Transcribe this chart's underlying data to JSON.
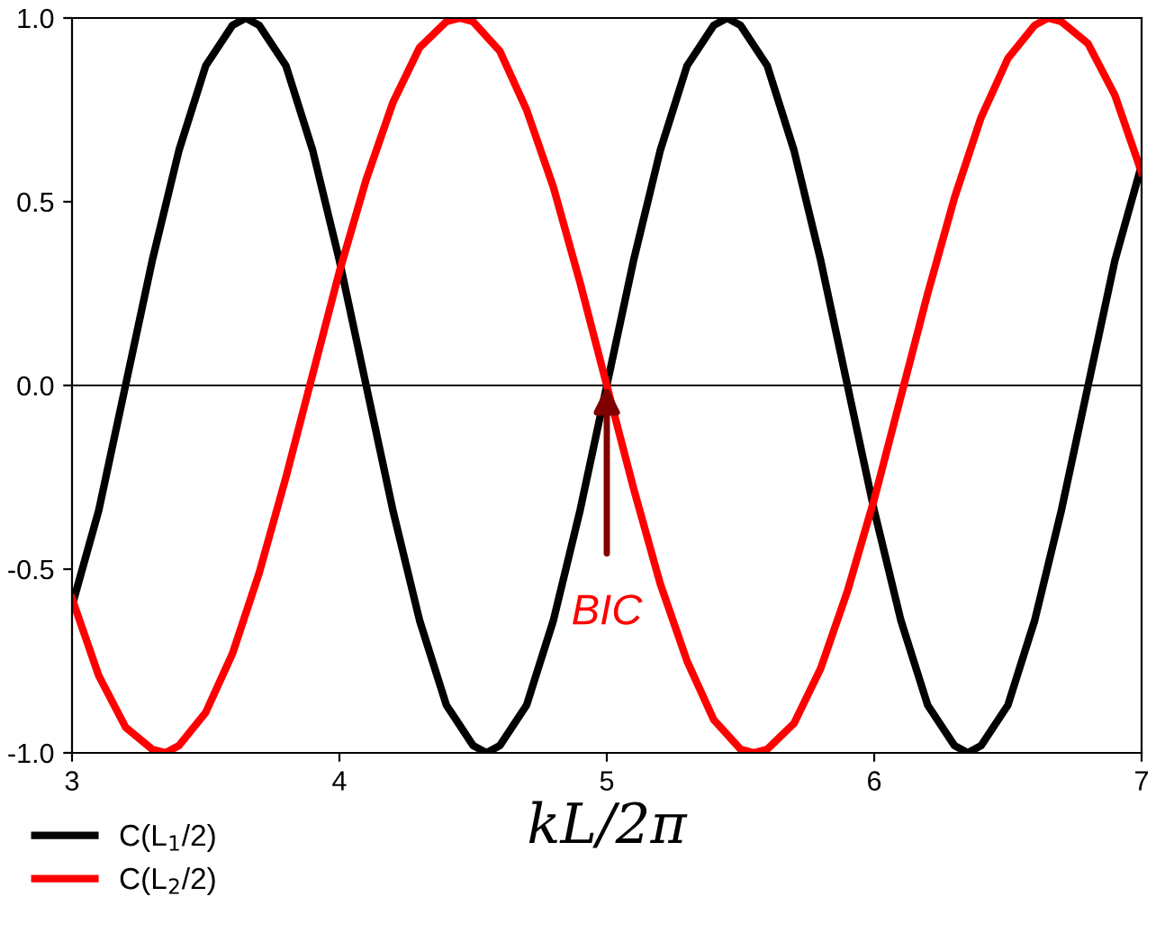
{
  "chart_data": {
    "type": "line",
    "xlabel": "kL/2π",
    "series": [
      {
        "name": "C(L$_{1}$/2)",
        "color": "#000000",
        "x": [
          3.0,
          3.1,
          3.2,
          3.3,
          3.4,
          3.5,
          3.6,
          3.65,
          3.7,
          3.8,
          3.9,
          4.0,
          4.1,
          4.2,
          4.3,
          4.4,
          4.5,
          4.55,
          4.6,
          4.7,
          4.8,
          4.9,
          5.0,
          5.1,
          5.2,
          5.3,
          5.4,
          5.45,
          5.5,
          5.6,
          5.7,
          5.8,
          5.9,
          6.0,
          6.1,
          6.2,
          6.3,
          6.35,
          6.4,
          6.5,
          6.6,
          6.7,
          6.8,
          6.9,
          7.0
        ],
        "values": [
          -0.6,
          -0.34,
          0,
          0.34,
          0.64,
          0.87,
          0.98,
          1.0,
          0.98,
          0.87,
          0.64,
          0.34,
          0,
          -0.34,
          -0.64,
          -0.87,
          -0.98,
          -1.0,
          -0.98,
          -0.87,
          -0.64,
          -0.34,
          0,
          0.34,
          0.64,
          0.87,
          0.98,
          1.0,
          0.98,
          0.87,
          0.64,
          0.34,
          0,
          -0.34,
          -0.64,
          -0.87,
          -0.98,
          -1.0,
          -0.98,
          -0.87,
          -0.64,
          -0.34,
          0,
          0.34,
          0.6
        ]
      },
      {
        "name": "C(L$_{2}$/2)",
        "color": "#ff0000",
        "x": [
          3.0,
          3.1,
          3.2,
          3.3,
          3.35,
          3.4,
          3.5,
          3.6,
          3.7,
          3.8,
          3.9,
          4.0,
          4.1,
          4.2,
          4.3,
          4.4,
          4.45,
          4.5,
          4.6,
          4.7,
          4.8,
          4.9,
          5.0,
          5.1,
          5.2,
          5.3,
          5.4,
          5.5,
          5.55,
          5.6,
          5.7,
          5.8,
          5.9,
          6.0,
          6.1,
          6.2,
          6.3,
          6.4,
          6.5,
          6.6,
          6.65,
          6.7,
          6.8,
          6.9,
          7.0
        ],
        "values": [
          -0.58,
          -0.79,
          -0.93,
          -0.99,
          -1.0,
          -0.98,
          -0.89,
          -0.73,
          -0.51,
          -0.25,
          0.03,
          0.31,
          0.56,
          0.77,
          0.92,
          0.99,
          1.0,
          0.99,
          0.91,
          0.75,
          0.54,
          0.28,
          0,
          -0.28,
          -0.54,
          -0.75,
          -0.91,
          -0.99,
          -1.0,
          -0.99,
          -0.92,
          -0.77,
          -0.56,
          -0.31,
          -0.03,
          0.25,
          0.51,
          0.73,
          0.89,
          0.98,
          1.0,
          0.99,
          0.93,
          0.79,
          0.58
        ]
      }
    ],
    "xlim": [
      3,
      7
    ],
    "xticks": [
      3,
      4,
      5,
      6,
      7
    ],
    "ylim": [
      -1,
      1
    ],
    "yticks": [
      {
        "value": -1,
        "label": "-1.0"
      },
      {
        "value": -0.5,
        "label": "-0.5"
      },
      {
        "value": 0,
        "label": "0.0"
      },
      {
        "value": 0.5,
        "label": "0.5"
      },
      {
        "value": 1,
        "label": "1.0"
      }
    ],
    "ref_lines": [
      {
        "axis": "y",
        "value": 0,
        "color": "#000000"
      }
    ],
    "annotations": [
      {
        "text": "BIC",
        "x": 5,
        "y": 0
      }
    ],
    "legend": "bottom left",
    "line_style": "solid",
    "grid": false
  }
}
